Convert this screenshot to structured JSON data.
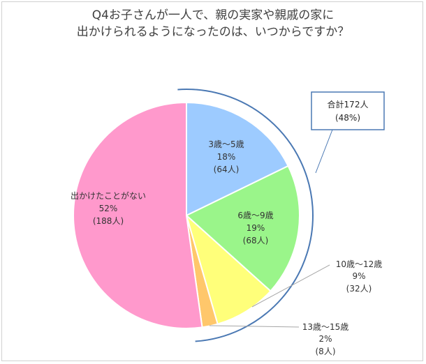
{
  "title": {
    "line1": "Q4お子さんが一人で、親の実家や親戚の家に",
    "line2": "出かけられるようになったのは、いつからですか？"
  },
  "callout": {
    "line1": "合計172人",
    "line2": "(48%)"
  },
  "colors": {
    "border": "#d0d0d0",
    "bracket": "#4a78b3",
    "leader": "#a6a6a6"
  },
  "chart_data": {
    "type": "pie",
    "start_angle_deg": 0,
    "direction": "clockwise",
    "slices": [
      {
        "name": "3歳～5歳",
        "percent": "18%",
        "count": "(64人)",
        "value": 64,
        "color": "#9dcbff"
      },
      {
        "name": "6歳～9歳",
        "percent": "19%",
        "count": "(68人)",
        "value": 68,
        "color": "#9af58a"
      },
      {
        "name": "10歳～12歳",
        "percent": "9%",
        "count": "(32人)",
        "value": 32,
        "color": "#ffff7a"
      },
      {
        "name": "13歳～15歳",
        "percent": "2%",
        "count": "(8人)",
        "value": 8,
        "color": "#ffc76b"
      },
      {
        "name": "出かけたことがない",
        "percent": "52%",
        "count": "(188人)",
        "value": 188,
        "color": "#ff99cc"
      }
    ]
  }
}
